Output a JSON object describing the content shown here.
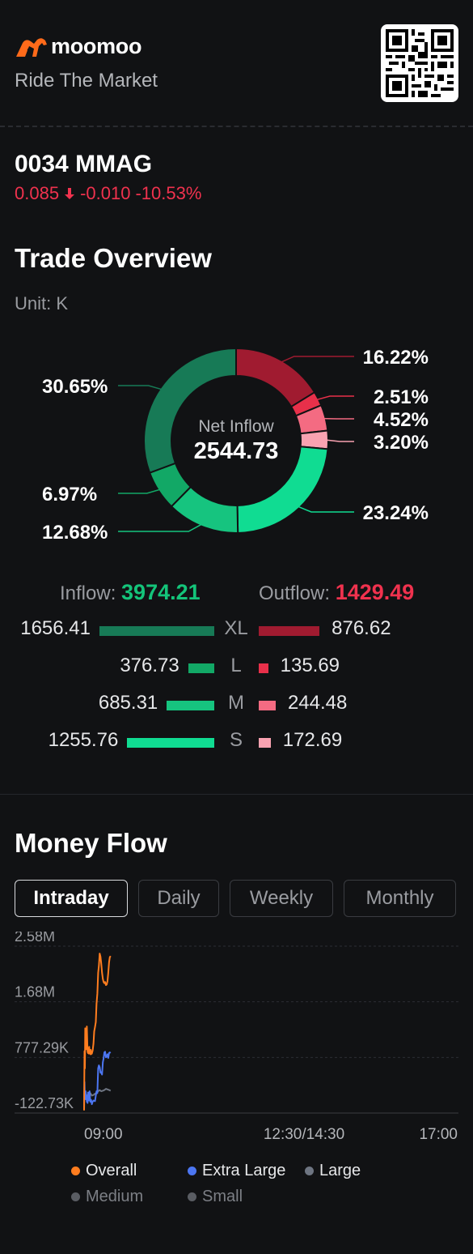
{
  "brand": {
    "name": "moomoo",
    "slogan": "Ride The Market",
    "color": "#ff6a1a"
  },
  "qr": {
    "icon": "qr-code-icon"
  },
  "stock": {
    "code": "0034",
    "name": "MMAG",
    "price": "0.085",
    "change": "-0.010",
    "change_pct": "-10.53%",
    "direction_icon": "arrow-down-icon",
    "color": "#f0324e"
  },
  "trade_overview": {
    "title": "Trade Overview",
    "unit": "Unit: K",
    "center_label": "Net Inflow",
    "center_value": "2544.73",
    "inflow_label": "Inflow: ",
    "inflow_value": "3974.21",
    "outflow_label": "Outflow: ",
    "outflow_value": "1429.49",
    "rows": [
      {
        "cat": "XL",
        "inflow": "1656.41",
        "outflow": "876.62",
        "inflow_num": 1656.41,
        "outflow_num": 876.62,
        "in_color": "#177a56",
        "out_color": "#a01b30"
      },
      {
        "cat": "L",
        "inflow": "376.73",
        "outflow": "135.69",
        "inflow_num": 376.73,
        "outflow_num": 135.69,
        "in_color": "#12a866",
        "out_color": "#e8304a"
      },
      {
        "cat": "M",
        "inflow": "685.31",
        "outflow": "244.48",
        "inflow_num": 685.31,
        "outflow_num": 244.48,
        "in_color": "#16c47f",
        "out_color": "#f46b82"
      },
      {
        "cat": "S",
        "inflow": "1255.76",
        "outflow": "172.69",
        "inflow_num": 1255.76,
        "outflow_num": 172.69,
        "in_color": "#10dc92",
        "out_color": "#f9a2b1"
      }
    ]
  },
  "chart_data": [
    {
      "type": "pie",
      "donut": true,
      "slices": [
        {
          "label": "16.22%",
          "value": 16.22,
          "series": "Outflow XL",
          "color": "#a01b30"
        },
        {
          "label": "2.51%",
          "value": 2.51,
          "series": "Outflow L",
          "color": "#e8304a"
        },
        {
          "label": "4.52%",
          "value": 4.52,
          "series": "Outflow M",
          "color": "#f46b82"
        },
        {
          "label": "3.20%",
          "value": 3.2,
          "series": "Outflow S",
          "color": "#f9a2b1"
        },
        {
          "label": "23.24%",
          "value": 23.24,
          "series": "Inflow S",
          "color": "#10dc92"
        },
        {
          "label": "12.68%",
          "value": 12.68,
          "series": "Inflow M",
          "color": "#16c47f"
        },
        {
          "label": "6.97%",
          "value": 6.97,
          "series": "Inflow L",
          "color": "#12a866"
        },
        {
          "label": "30.65%",
          "value": 30.65,
          "series": "Inflow XL",
          "color": "#177a56"
        }
      ]
    },
    {
      "type": "line",
      "title": "Money Flow",
      "tabs": [
        "Intraday",
        "Daily",
        "Weekly",
        "Monthly"
      ],
      "active_tab": "Intraday",
      "y_ticks": [
        "2.58M",
        "1.68M",
        "777.29K",
        "-122.73K"
      ],
      "y_tick_values": [
        2580,
        1680,
        777.29,
        -122.73
      ],
      "ylim": [
        -122.73,
        2580
      ],
      "x_ticks": [
        "09:00",
        "12:30/14:30",
        "17:00"
      ],
      "x_domain": [
        0,
        480
      ],
      "grid": true,
      "legend_position": "bottom",
      "series": [
        {
          "name": "Overall",
          "color": "#ff7d1f",
          "x": [
            0,
            0.5,
            1,
            1.5,
            2,
            2.5,
            3,
            3.5,
            4,
            4.5,
            5,
            5.5,
            6,
            6.5,
            7,
            7.5,
            8,
            8.5,
            9,
            9.5,
            10,
            11,
            12,
            13,
            14,
            15,
            16,
            17,
            18,
            19,
            20,
            21,
            22,
            23,
            24,
            25,
            26,
            27,
            28,
            29,
            30,
            31,
            32,
            33,
            34
          ],
          "values": [
            -80,
            880,
            600,
            1250,
            1000,
            1100,
            910,
            1280,
            1050,
            870,
            850,
            920,
            840,
            950,
            860,
            900,
            830,
            900,
            830,
            870,
            840,
            890,
            1000,
            1200,
            1270,
            1350,
            1650,
            1810,
            2150,
            2260,
            2460,
            2410,
            2300,
            2150,
            2050,
            2000,
            1980,
            2000,
            1950,
            1960,
            2010,
            2150,
            2320,
            2400,
            2420
          ]
        },
        {
          "name": "Extra Large",
          "color": "#4c76f2",
          "x": [
            0,
            0.5,
            1,
            1.5,
            2,
            2.5,
            3,
            3.5,
            4,
            4.5,
            5,
            6,
            7,
            8,
            9,
            10,
            11,
            12,
            13,
            14,
            15,
            16,
            17,
            18,
            19,
            20,
            21,
            22,
            23,
            24,
            25,
            26,
            27,
            28,
            29,
            30,
            31,
            32,
            33,
            34
          ],
          "values": [
            -60,
            380,
            100,
            200,
            230,
            100,
            150,
            60,
            80,
            40,
            210,
            80,
            230,
            60,
            90,
            20,
            60,
            80,
            75,
            70,
            160,
            230,
            200,
            600,
            650,
            620,
            530,
            540,
            500,
            700,
            760,
            860,
            870,
            780,
            790,
            830,
            770,
            850,
            860,
            850
          ]
        },
        {
          "name": "Large",
          "color": "#6e7582",
          "x": [
            0,
            2,
            4,
            6,
            8,
            10,
            12,
            14,
            16,
            18,
            20,
            22,
            24,
            26,
            28,
            30,
            32,
            34
          ],
          "values": [
            140,
            180,
            150,
            210,
            200,
            160,
            170,
            190,
            200,
            230,
            250,
            230,
            240,
            250,
            270,
            260,
            250,
            240
          ]
        },
        {
          "name": "Medium",
          "color": "#5a5d63",
          "x": [],
          "values": []
        },
        {
          "name": "Small",
          "color": "#5a5d63",
          "x": [],
          "values": []
        }
      ]
    }
  ]
}
